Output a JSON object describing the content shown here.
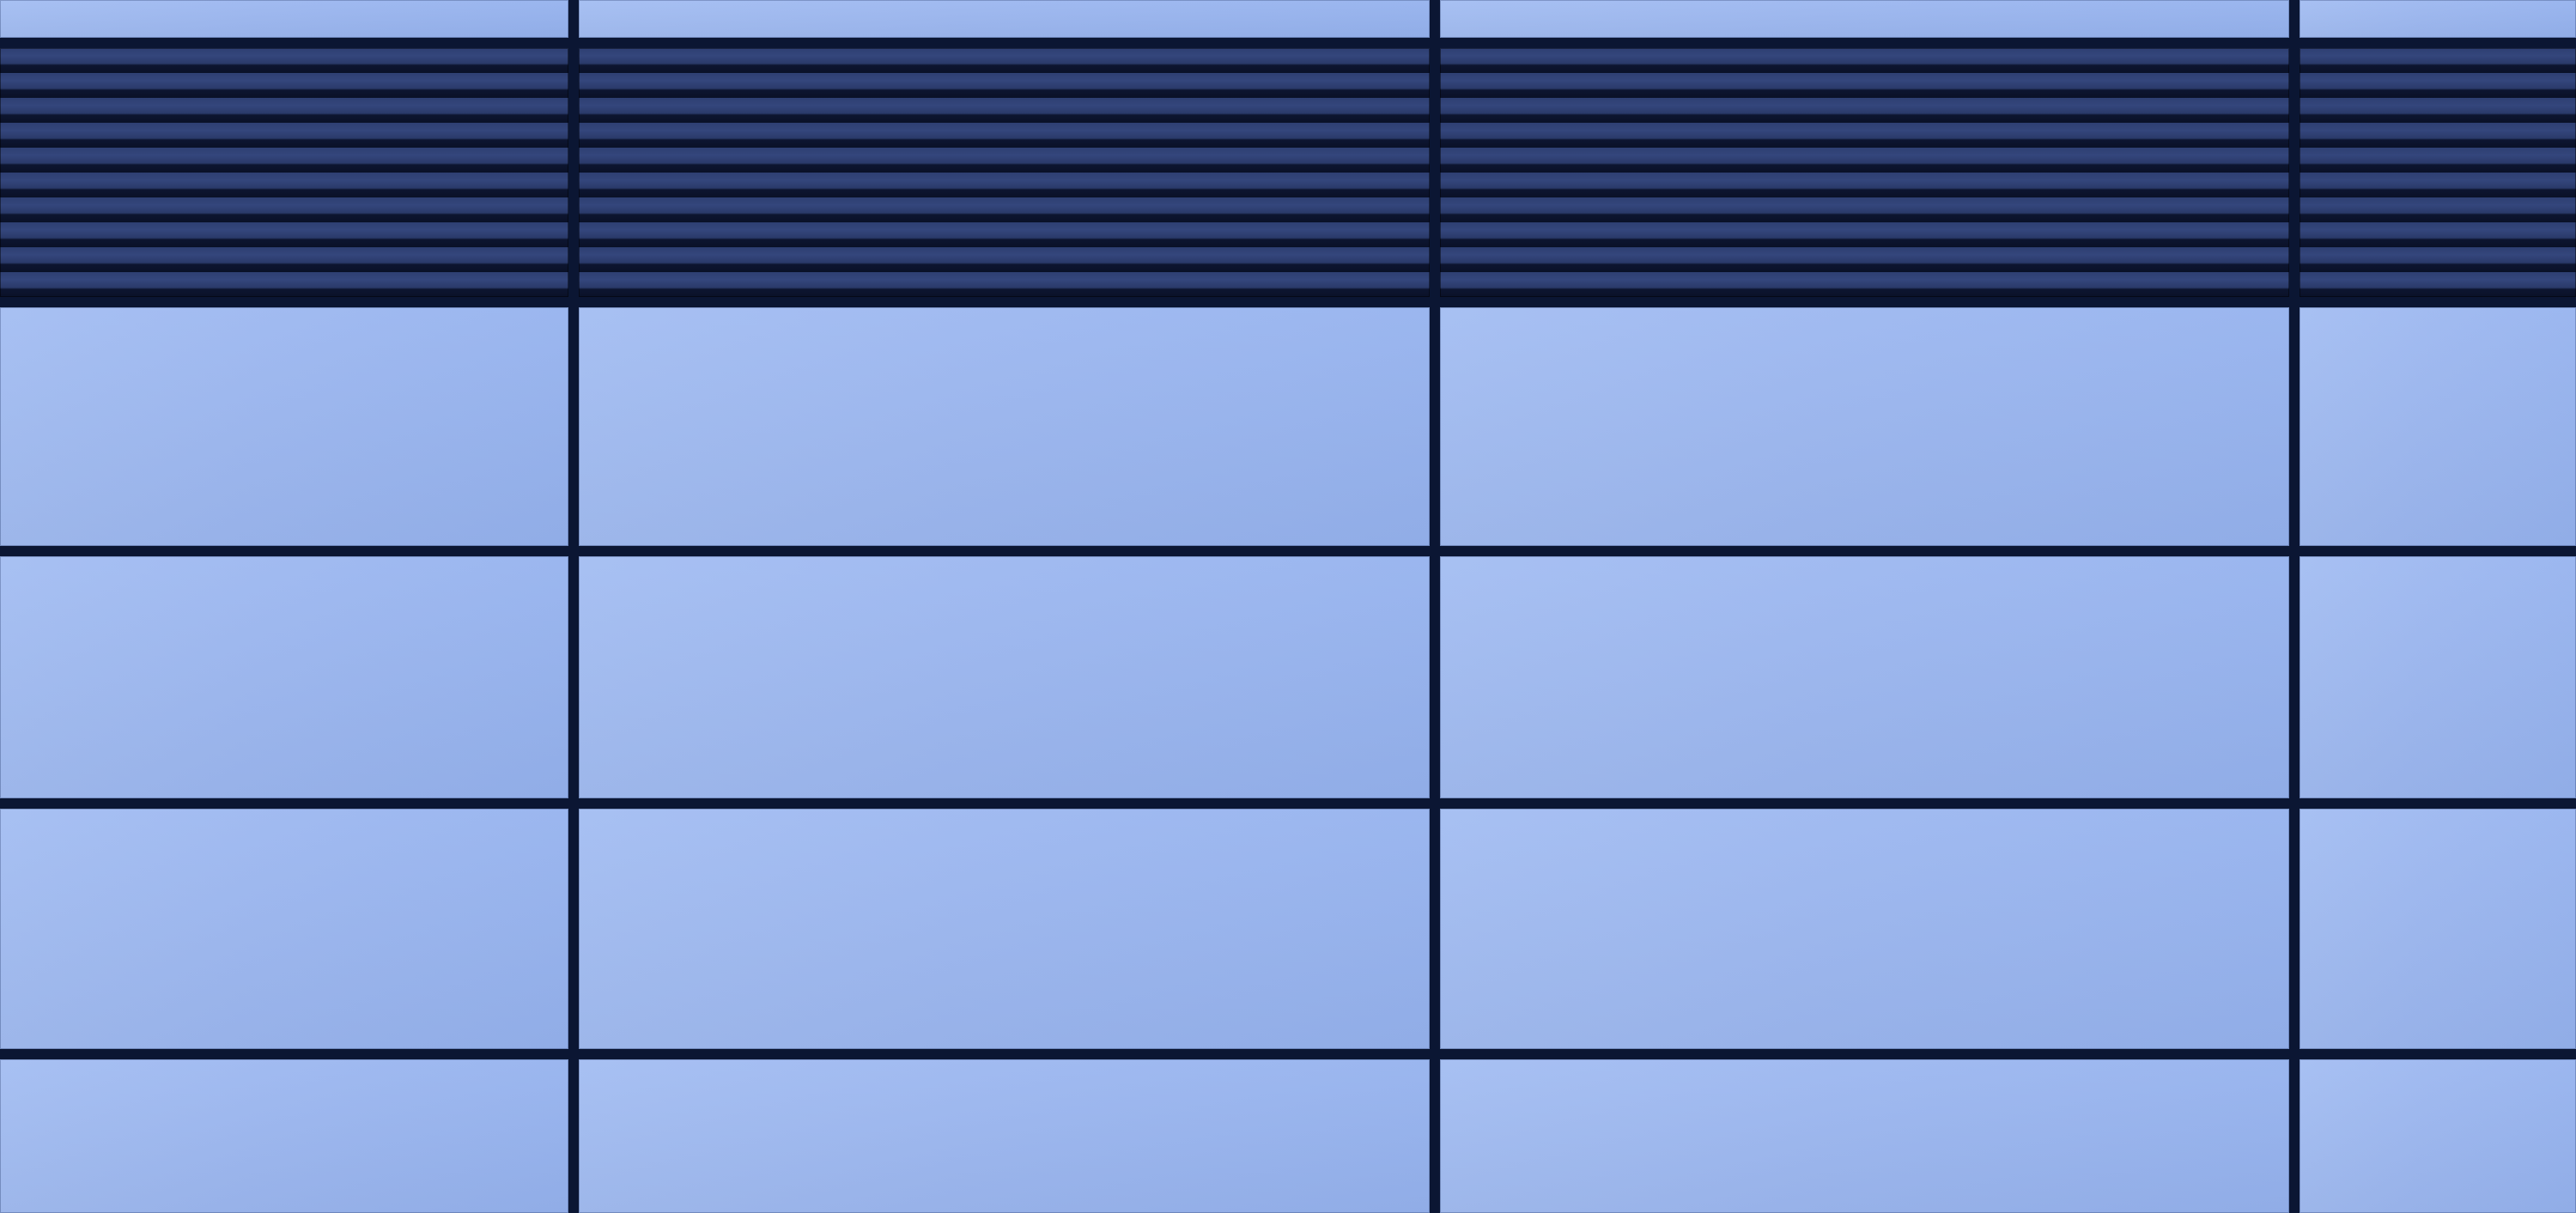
{
  "scene": {
    "subject": "curtain-wall-facade",
    "colors": {
      "panel": "#9db8f0",
      "louver": "#2f4175",
      "louver_gap": "#0b1128",
      "seam": "#0b1633"
    },
    "panel_columns": 4,
    "panel_rows": 4,
    "louver_band_count": 1
  }
}
